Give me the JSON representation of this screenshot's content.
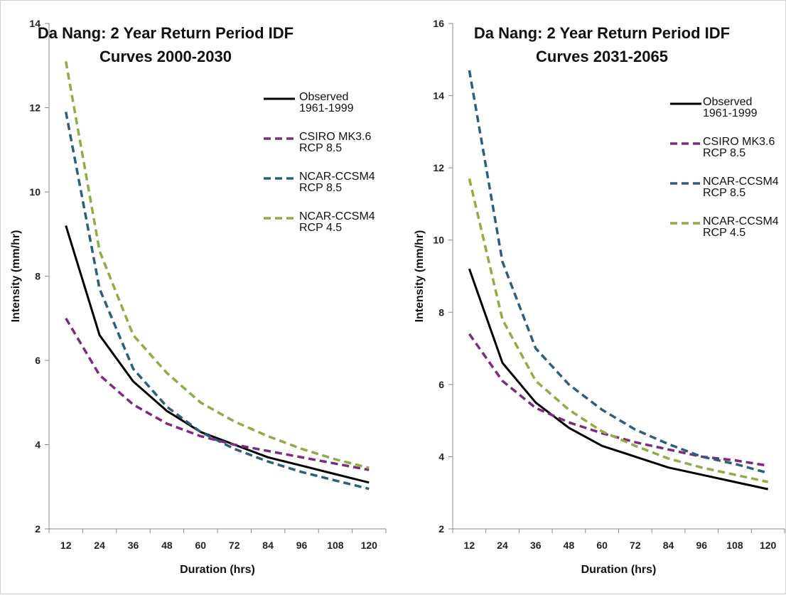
{
  "chart_data": [
    {
      "type": "line",
      "title": [
        "Da Nang: 2 Year Return Period IDF",
        "Curves 2000-2030"
      ],
      "xlabel": "Duration (hrs)",
      "ylabel": "Intensity (mm/hr)",
      "x": [
        12,
        24,
        36,
        48,
        60,
        72,
        84,
        96,
        108,
        120
      ],
      "xticks": [
        "12",
        "24",
        "36",
        "48",
        "60",
        "72",
        "84",
        "96",
        "108",
        "120"
      ],
      "ylim": [
        2,
        14
      ],
      "yticks": [
        "2",
        "4",
        "6",
        "8",
        "10",
        "12",
        "14"
      ],
      "legend_position": "top-right",
      "grid": false,
      "series": [
        {
          "name": [
            "Observed",
            "1961-1999"
          ],
          "color": "#000000",
          "dashed": false,
          "values": [
            9.2,
            6.6,
            5.5,
            4.8,
            4.3,
            4.0,
            3.7,
            3.5,
            3.3,
            3.1
          ]
        },
        {
          "name": [
            "CSIRO MK3.6",
            "RCP 8.5"
          ],
          "color": "#7b2a7e",
          "dashed": true,
          "values": [
            7.0,
            5.65,
            4.95,
            4.5,
            4.2,
            4.0,
            3.85,
            3.7,
            3.55,
            3.4
          ]
        },
        {
          "name": [
            "NCAR-CCSM4",
            "RCP 8.5"
          ],
          "color": "#2f5f78",
          "dashed": true,
          "values": [
            11.9,
            7.7,
            5.8,
            4.9,
            4.3,
            3.9,
            3.6,
            3.35,
            3.15,
            2.95
          ]
        },
        {
          "name": [
            "NCAR-CCSM4",
            "RCP 4.5"
          ],
          "color": "#8fac45",
          "dashed": true,
          "values": [
            13.1,
            8.6,
            6.6,
            5.7,
            5.0,
            4.55,
            4.2,
            3.9,
            3.65,
            3.45
          ]
        }
      ]
    },
    {
      "type": "line",
      "title": [
        "Da Nang: 2 Year Return Period IDF",
        "Curves 2031-2065"
      ],
      "xlabel": "Duration (hrs)",
      "ylabel": "Intensity (mm/hr)",
      "x": [
        12,
        24,
        36,
        48,
        60,
        72,
        84,
        96,
        108,
        120
      ],
      "xticks": [
        "12",
        "24",
        "36",
        "48",
        "60",
        "72",
        "84",
        "96",
        "108",
        "120"
      ],
      "ylim": [
        2,
        16
      ],
      "yticks": [
        "2",
        "4",
        "6",
        "8",
        "10",
        "12",
        "14",
        "16"
      ],
      "legend_position": "top-right",
      "grid": false,
      "series": [
        {
          "name": [
            "Observed",
            "1961-1999"
          ],
          "color": "#000000",
          "dashed": false,
          "values": [
            9.2,
            6.6,
            5.5,
            4.8,
            4.3,
            4.0,
            3.7,
            3.5,
            3.3,
            3.1
          ]
        },
        {
          "name": [
            "CSIRO MK3.6",
            "RCP 8.5"
          ],
          "color": "#7b2a7e",
          "dashed": true,
          "values": [
            7.4,
            6.1,
            5.35,
            4.95,
            4.65,
            4.4,
            4.2,
            4.0,
            3.9,
            3.75
          ]
        },
        {
          "name": [
            "NCAR-CCSM4",
            "RCP 8.5"
          ],
          "color": "#2f5f78",
          "dashed": true,
          "values": [
            14.7,
            9.4,
            7.0,
            6.0,
            5.3,
            4.75,
            4.35,
            4.0,
            3.8,
            3.55
          ]
        },
        {
          "name": [
            "NCAR-CCSM4",
            "RCP 4.5"
          ],
          "color": "#8fac45",
          "dashed": true,
          "values": [
            11.7,
            7.8,
            6.1,
            5.3,
            4.7,
            4.3,
            3.95,
            3.7,
            3.5,
            3.3
          ]
        }
      ]
    }
  ]
}
